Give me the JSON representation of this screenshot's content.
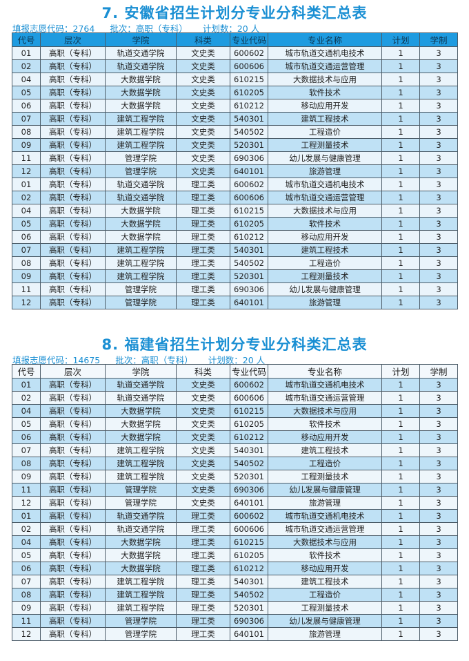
{
  "headers": [
    "代号",
    "层次",
    "学院",
    "科类",
    "专业代码",
    "专业名称",
    "计划",
    "学制"
  ],
  "colors": {
    "accent": "#1a8fd3",
    "header_blue": "#1e9be0",
    "row_blue": "#bfe1f5",
    "row_pale": "#eaf4fb"
  },
  "sections": [
    {
      "title": "7. 安徽省招生计划分专业分科类汇总表",
      "code_label": "填报志愿代码：2764",
      "batch_label": "批次：高职（专科）",
      "count_label": "计划数：20 人",
      "rows": [
        [
          "01",
          "高职（专科）",
          "轨道交通学院",
          "文史类",
          "600602",
          "城市轨道交通机电技术",
          "1",
          "3"
        ],
        [
          "02",
          "高职（专科）",
          "轨道交通学院",
          "文史类",
          "600606",
          "城市轨道交通运营管理",
          "1",
          "3"
        ],
        [
          "04",
          "高职（专科）",
          "大数据学院",
          "文史类",
          "610215",
          "大数据技术与应用",
          "1",
          "3"
        ],
        [
          "05",
          "高职（专科）",
          "大数据学院",
          "文史类",
          "610205",
          "软件技术",
          "1",
          "3"
        ],
        [
          "06",
          "高职（专科）",
          "大数据学院",
          "文史类",
          "610212",
          "移动应用开发",
          "1",
          "3"
        ],
        [
          "07",
          "高职（专科）",
          "建筑工程学院",
          "文史类",
          "540301",
          "建筑工程技术",
          "1",
          "3"
        ],
        [
          "08",
          "高职（专科）",
          "建筑工程学院",
          "文史类",
          "540502",
          "工程造价",
          "1",
          "3"
        ],
        [
          "09",
          "高职（专科）",
          "建筑工程学院",
          "文史类",
          "520301",
          "工程测量技术",
          "1",
          "3"
        ],
        [
          "11",
          "高职（专科）",
          "管理学院",
          "文史类",
          "690306",
          "幼儿发展与健康管理",
          "1",
          "3"
        ],
        [
          "12",
          "高职（专科）",
          "管理学院",
          "文史类",
          "640101",
          "旅游管理",
          "1",
          "3"
        ],
        [
          "01",
          "高职（专科）",
          "轨道交通学院",
          "理工类",
          "600602",
          "城市轨道交通机电技术",
          "1",
          "3"
        ],
        [
          "02",
          "高职（专科）",
          "轨道交通学院",
          "理工类",
          "600606",
          "城市轨道交通运营管理",
          "1",
          "3"
        ],
        [
          "04",
          "高职（专科）",
          "大数据学院",
          "理工类",
          "610215",
          "大数据技术与应用",
          "1",
          "3"
        ],
        [
          "05",
          "高职（专科）",
          "大数据学院",
          "理工类",
          "610205",
          "软件技术",
          "1",
          "3"
        ],
        [
          "06",
          "高职（专科）",
          "大数据学院",
          "理工类",
          "610212",
          "移动应用开发",
          "1",
          "3"
        ],
        [
          "07",
          "高职（专科）",
          "建筑工程学院",
          "理工类",
          "540301",
          "建筑工程技术",
          "1",
          "3"
        ],
        [
          "08",
          "高职（专科）",
          "建筑工程学院",
          "理工类",
          "540502",
          "工程造价",
          "1",
          "3"
        ],
        [
          "09",
          "高职（专科）",
          "建筑工程学院",
          "理工类",
          "520301",
          "工程测量技术",
          "1",
          "3"
        ],
        [
          "11",
          "高职（专科）",
          "管理学院",
          "理工类",
          "690306",
          "幼儿发展与健康管理",
          "1",
          "3"
        ],
        [
          "12",
          "高职（专科）",
          "管理学院",
          "理工类",
          "640101",
          "旅游管理",
          "1",
          "3"
        ]
      ]
    },
    {
      "title": "8. 福建省招生计划分专业分科类汇总表",
      "code_label": "填报志愿代码：14675",
      "batch_label": "批次：高职（专科）",
      "count_label": "计划数：20 人",
      "rows": [
        [
          "01",
          "高职（专科）",
          "轨道交通学院",
          "文史类",
          "600602",
          "城市轨道交通机电技术",
          "1",
          "3"
        ],
        [
          "02",
          "高职（专科）",
          "轨道交通学院",
          "文史类",
          "600606",
          "城市轨道交通运营管理",
          "1",
          "3"
        ],
        [
          "04",
          "高职（专科）",
          "大数据学院",
          "文史类",
          "610215",
          "大数据技术与应用",
          "1",
          "3"
        ],
        [
          "05",
          "高职（专科）",
          "大数据学院",
          "文史类",
          "610205",
          "软件技术",
          "1",
          "3"
        ],
        [
          "06",
          "高职（专科）",
          "大数据学院",
          "文史类",
          "610212",
          "移动应用开发",
          "1",
          "3"
        ],
        [
          "07",
          "高职（专科）",
          "建筑工程学院",
          "文史类",
          "540301",
          "建筑工程技术",
          "1",
          "3"
        ],
        [
          "08",
          "高职（专科）",
          "建筑工程学院",
          "文史类",
          "540502",
          "工程造价",
          "1",
          "3"
        ],
        [
          "09",
          "高职（专科）",
          "建筑工程学院",
          "文史类",
          "520301",
          "工程测量技术",
          "1",
          "3"
        ],
        [
          "11",
          "高职（专科）",
          "管理学院",
          "文史类",
          "690306",
          "幼儿发展与健康管理",
          "1",
          "3"
        ],
        [
          "12",
          "高职（专科）",
          "管理学院",
          "文史类",
          "640101",
          "旅游管理",
          "1",
          "3"
        ],
        [
          "01",
          "高职（专科）",
          "轨道交通学院",
          "理工类",
          "600602",
          "城市轨道交通机电技术",
          "1",
          "3"
        ],
        [
          "02",
          "高职（专科）",
          "轨道交通学院",
          "理工类",
          "600606",
          "城市轨道交通运营管理",
          "1",
          "3"
        ],
        [
          "04",
          "高职（专科）",
          "大数据学院",
          "理工类",
          "610215",
          "大数据技术与应用",
          "1",
          "3"
        ],
        [
          "05",
          "高职（专科）",
          "大数据学院",
          "理工类",
          "610205",
          "软件技术",
          "1",
          "3"
        ],
        [
          "06",
          "高职（专科）",
          "大数据学院",
          "理工类",
          "610212",
          "移动应用开发",
          "1",
          "3"
        ],
        [
          "07",
          "高职（专科）",
          "建筑工程学院",
          "理工类",
          "540301",
          "建筑工程技术",
          "1",
          "3"
        ],
        [
          "08",
          "高职（专科）",
          "建筑工程学院",
          "理工类",
          "540502",
          "工程造价",
          "1",
          "3"
        ],
        [
          "09",
          "高职（专科）",
          "建筑工程学院",
          "理工类",
          "520301",
          "工程测量技术",
          "1",
          "3"
        ],
        [
          "11",
          "高职（专科）",
          "管理学院",
          "理工类",
          "690306",
          "幼儿发展与健康管理",
          "1",
          "3"
        ],
        [
          "12",
          "高职（专科）",
          "管理学院",
          "理工类",
          "640101",
          "旅游管理",
          "1",
          "3"
        ]
      ]
    }
  ]
}
